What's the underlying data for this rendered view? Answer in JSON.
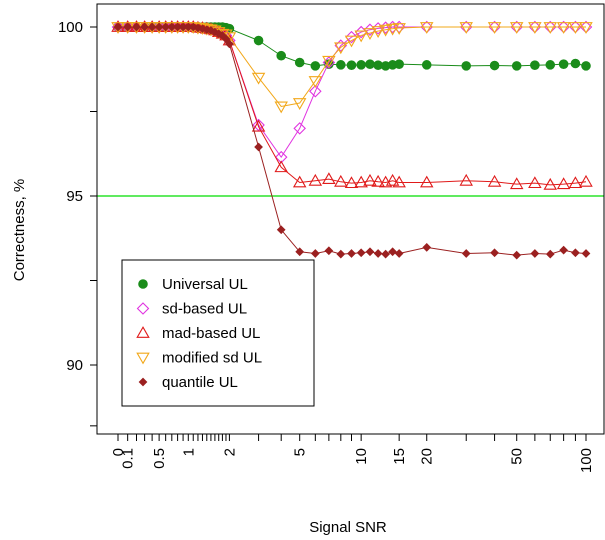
{
  "chart_data": {
    "type": "line",
    "title": "",
    "xlabel": "Signal SNR",
    "ylabel": "Correctness, %",
    "x_scale": "log(1+SNR)",
    "xlim": [
      0,
      100
    ],
    "ylim": [
      88.2,
      100.3
    ],
    "x_ticks": [
      "0",
      "0.1",
      "0.5",
      "1",
      "2",
      "5",
      "10",
      "15",
      "20",
      "50",
      "100"
    ],
    "x_tick_values": [
      0,
      0.1,
      0.5,
      1,
      2,
      5,
      10,
      15,
      20,
      50,
      100
    ],
    "x_minor_ticks": [
      0.2,
      0.3,
      0.4,
      0.6,
      0.7,
      0.8,
      0.9,
      1.1,
      1.2,
      1.3,
      1.4,
      1.5,
      1.6,
      1.7,
      1.8,
      1.9,
      3,
      4,
      6,
      7,
      8,
      9,
      30,
      40,
      60,
      70,
      80,
      90
    ],
    "y_ticks": [
      "90",
      "95",
      "100"
    ],
    "y_tick_values": [
      90,
      95,
      100
    ],
    "y_minor_ticks": [
      88.2,
      92.5,
      97.5
    ],
    "reference_line": {
      "y": 95,
      "color": "#00dd00"
    },
    "legend_position": "bottom-left",
    "series": [
      {
        "name": "Universal UL",
        "marker": "filled-circle",
        "color": "#1a8c1a",
        "x": [
          0,
          0.1,
          0.2,
          0.3,
          0.4,
          0.5,
          0.6,
          0.7,
          0.8,
          0.9,
          1,
          1.1,
          1.2,
          1.3,
          1.4,
          1.5,
          1.6,
          1.7,
          1.8,
          1.9,
          2,
          3,
          4,
          5,
          6,
          7,
          8,
          9,
          10,
          11,
          12,
          13,
          14,
          15,
          20,
          30,
          40,
          50,
          60,
          70,
          80,
          90,
          100
        ],
        "y": [
          100,
          100,
          100,
          100,
          100,
          100,
          100,
          100,
          100,
          100,
          100,
          100,
          100,
          100,
          100,
          100,
          100,
          100,
          100,
          99.98,
          99.95,
          99.6,
          99.15,
          98.95,
          98.85,
          98.9,
          98.88,
          98.87,
          98.88,
          98.9,
          98.87,
          98.85,
          98.88,
          98.9,
          98.88,
          98.85,
          98.86,
          98.85,
          98.87,
          98.88,
          98.9,
          98.92,
          98.85
        ]
      },
      {
        "name": "sd-based UL",
        "marker": "diamond",
        "color": "#e033e0",
        "x": [
          0,
          0.1,
          0.2,
          0.3,
          0.4,
          0.5,
          0.6,
          0.7,
          0.8,
          0.9,
          1,
          1.1,
          1.2,
          1.3,
          1.4,
          1.5,
          1.6,
          1.7,
          1.8,
          1.9,
          2,
          3,
          4,
          5,
          6,
          7,
          8,
          9,
          10,
          11,
          12,
          13,
          14,
          15,
          20,
          30,
          40,
          50,
          60,
          70,
          80,
          90,
          100
        ],
        "y": [
          100,
          100,
          100,
          100,
          100,
          100,
          100,
          100,
          100,
          100,
          100,
          100,
          99.98,
          99.97,
          99.95,
          99.93,
          99.9,
          99.85,
          99.8,
          99.75,
          99.6,
          97.1,
          96.15,
          97.0,
          98.1,
          98.95,
          99.45,
          99.7,
          99.85,
          99.92,
          99.96,
          99.98,
          100,
          100,
          100,
          100,
          100,
          100,
          100,
          100,
          100,
          100,
          100
        ]
      },
      {
        "name": "mad-based UL",
        "marker": "triangle-up",
        "color": "#e01a1a",
        "x": [
          0,
          0.1,
          0.2,
          0.3,
          0.4,
          0.5,
          0.6,
          0.7,
          0.8,
          0.9,
          1,
          1.1,
          1.2,
          1.3,
          1.4,
          1.5,
          1.6,
          1.7,
          1.8,
          1.9,
          2,
          3,
          4,
          5,
          6,
          7,
          8,
          9,
          10,
          11,
          12,
          13,
          14,
          15,
          20,
          30,
          40,
          50,
          60,
          70,
          80,
          90,
          100
        ],
        "y": [
          100,
          100,
          100,
          100,
          100,
          100,
          100,
          100,
          100,
          100,
          100,
          100,
          99.98,
          99.97,
          99.95,
          99.93,
          99.9,
          99.85,
          99.8,
          99.75,
          99.6,
          97.05,
          95.85,
          95.4,
          95.45,
          95.5,
          95.42,
          95.38,
          95.4,
          95.45,
          95.42,
          95.4,
          95.45,
          95.4,
          95.4,
          95.45,
          95.42,
          95.35,
          95.38,
          95.33,
          95.35,
          95.38,
          95.42
        ]
      },
      {
        "name": "modified sd UL",
        "marker": "triangle-down",
        "color": "#f2a81a",
        "x": [
          0,
          0.1,
          0.2,
          0.3,
          0.4,
          0.5,
          0.6,
          0.7,
          0.8,
          0.9,
          1,
          1.1,
          1.2,
          1.3,
          1.4,
          1.5,
          1.6,
          1.7,
          1.8,
          1.9,
          2,
          3,
          4,
          5,
          6,
          7,
          8,
          9,
          10,
          11,
          12,
          13,
          14,
          15,
          20,
          30,
          40,
          50,
          60,
          70,
          80,
          90,
          100
        ],
        "y": [
          100,
          100,
          100,
          100,
          100,
          100,
          100,
          100,
          100,
          100,
          100,
          100,
          99.98,
          99.97,
          99.95,
          99.93,
          99.9,
          99.85,
          99.8,
          99.78,
          99.7,
          98.5,
          97.65,
          97.75,
          98.4,
          99.0,
          99.4,
          99.6,
          99.75,
          99.82,
          99.88,
          99.92,
          99.95,
          99.97,
          100,
          100,
          100,
          100,
          100,
          100,
          100,
          100,
          100
        ]
      },
      {
        "name": "quantile UL",
        "marker": "small-filled-diamond",
        "color": "#9b2020",
        "x": [
          0,
          0.1,
          0.2,
          0.3,
          0.4,
          0.5,
          0.6,
          0.7,
          0.8,
          0.9,
          1,
          1.1,
          1.2,
          1.3,
          1.4,
          1.5,
          1.6,
          1.7,
          1.8,
          1.9,
          2,
          3,
          4,
          5,
          6,
          7,
          8,
          9,
          10,
          11,
          12,
          13,
          14,
          15,
          20,
          30,
          40,
          50,
          60,
          70,
          80,
          90,
          100
        ],
        "y": [
          100,
          100,
          100,
          100,
          100,
          100,
          100,
          100,
          100,
          100,
          100,
          100,
          99.97,
          99.95,
          99.92,
          99.9,
          99.85,
          99.8,
          99.75,
          99.65,
          99.5,
          96.45,
          94.0,
          93.35,
          93.3,
          93.38,
          93.28,
          93.3,
          93.32,
          93.35,
          93.3,
          93.28,
          93.35,
          93.3,
          93.48,
          93.3,
          93.32,
          93.25,
          93.3,
          93.28,
          93.4,
          93.32,
          93.3
        ]
      }
    ]
  }
}
